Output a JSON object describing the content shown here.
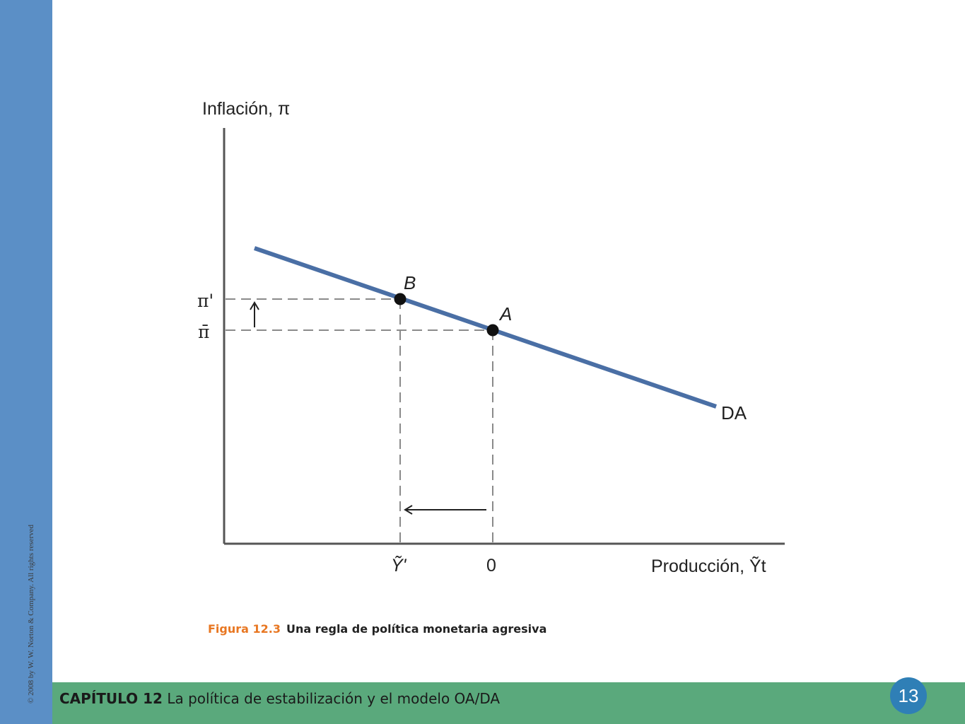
{
  "copyright": "© 2008 by W. W. Norton & Company. All rights reserved",
  "footer": {
    "chapter_label": "CAPÍTULO 12",
    "chapter_title": "La política de estabilización y el modelo OA/DA",
    "page_number": "13"
  },
  "figure": {
    "number": "Figura 12.3",
    "title": "Una regla de política monetaria agresiva",
    "y_axis_label": "Inflación, π",
    "x_axis_label": "Producción, Ỹt",
    "curve_label": "DA",
    "point_b_label": "B",
    "point_a_label": "A",
    "y_tick_pi_prime": "π'",
    "y_tick_pi_bar": "π̄",
    "x_tick_y_prime": "Ỹ'",
    "x_tick_zero": "0"
  },
  "colors": {
    "curve": "#4a6fa5",
    "left_bar": "#5b8fc6",
    "bottom_bar": "#5aa97c",
    "badge": "#2f7fb6",
    "figure_number": "#e87722"
  }
}
